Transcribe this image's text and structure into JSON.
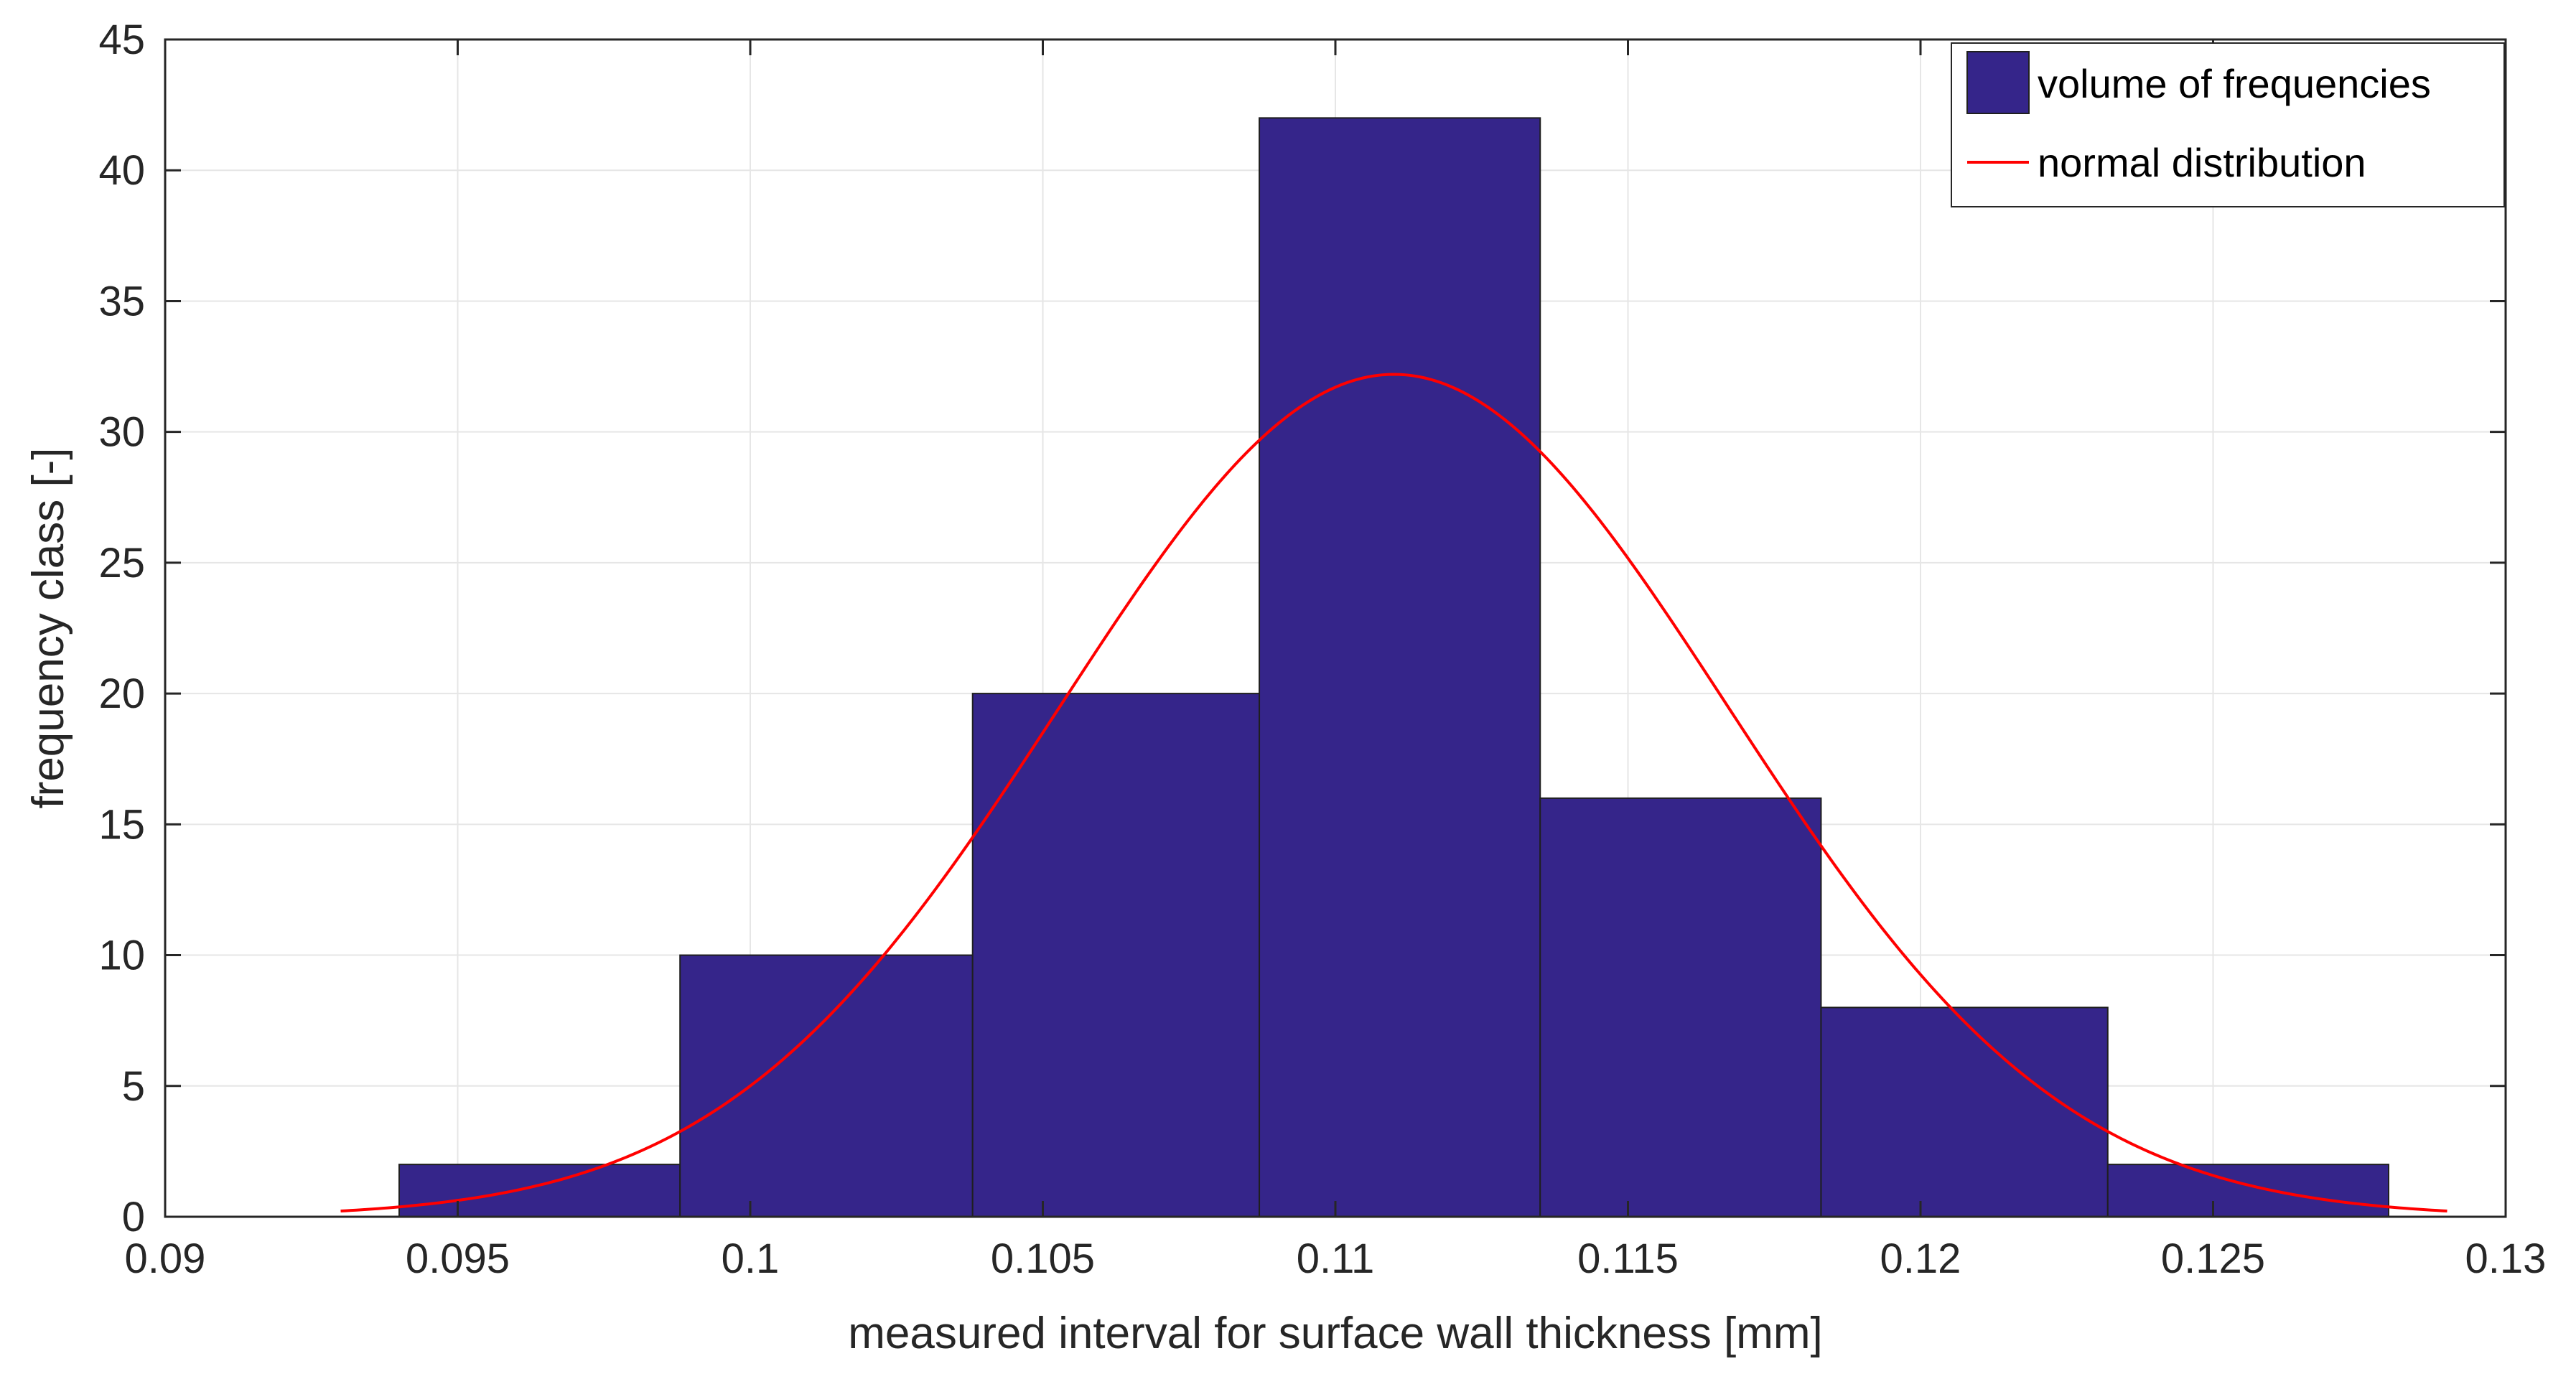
{
  "chart_data": {
    "type": "bar",
    "title": "",
    "xlabel": "measured interval for surface wall thickness [mm]",
    "ylabel": "frequency class [-]",
    "xlim": [
      0.09,
      0.13
    ],
    "ylim": [
      0,
      45
    ],
    "xticks": [
      0.09,
      0.095,
      0.1,
      0.105,
      0.11,
      0.115,
      0.12,
      0.125,
      0.13
    ],
    "xtick_labels": [
      "0.09",
      "0.095",
      "0.1",
      "0.105",
      "0.11",
      "0.115",
      "0.12",
      "0.125",
      "0.13"
    ],
    "yticks": [
      0,
      5,
      10,
      15,
      20,
      25,
      30,
      35,
      40,
      45
    ],
    "ytick_labels": [
      "0",
      "5",
      "10",
      "15",
      "20",
      "25",
      "30",
      "35",
      "40",
      "45"
    ],
    "grid": true,
    "legend_position": "top-right",
    "series": [
      {
        "name": "volume of frequencies",
        "type": "histogram",
        "color": "#35258a",
        "bins": [
          {
            "x0": 0.094,
            "x1": 0.0988,
            "value": 2
          },
          {
            "x0": 0.0988,
            "x1": 0.1038,
            "value": 10
          },
          {
            "x0": 0.1038,
            "x1": 0.1087,
            "value": 20
          },
          {
            "x0": 0.1087,
            "x1": 0.1135,
            "value": 42
          },
          {
            "x0": 0.1135,
            "x1": 0.1183,
            "value": 16
          },
          {
            "x0": 0.1183,
            "x1": 0.1232,
            "value": 8
          },
          {
            "x0": 0.1232,
            "x1": 0.128,
            "value": 2
          }
        ]
      },
      {
        "name": "normal distribution",
        "type": "line",
        "color": "#ff0000",
        "peak": 32.2,
        "mean": 0.111,
        "std": 0.0057,
        "x_range": [
          0.093,
          0.129
        ]
      }
    ]
  }
}
